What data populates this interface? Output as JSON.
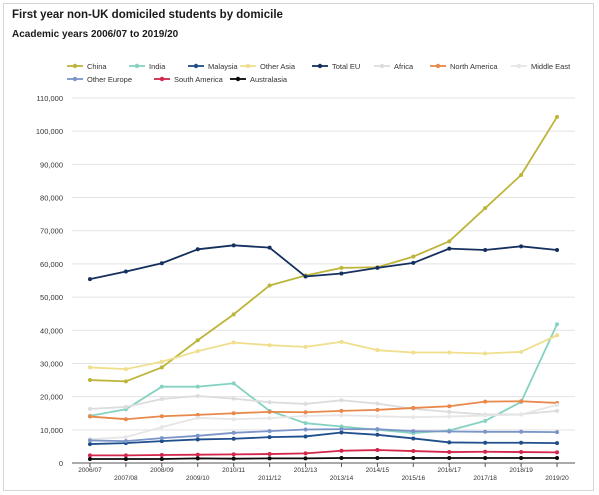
{
  "chart_data": {
    "type": "line",
    "title": "First year non-UK domiciled students by domicile",
    "subtitle": "Academic years 2006/07 to 2019/20",
    "xlabel": "",
    "ylabel": "",
    "ylim": [
      0,
      110000
    ],
    "yticks": [
      "0",
      "10,000",
      "20,000",
      "30,000",
      "40,000",
      "50,000",
      "60,000",
      "70,000",
      "80,000",
      "90,000",
      "100,000",
      "110,000"
    ],
    "grid": true,
    "legend": "top",
    "categories": [
      "2006/07",
      "2007/08",
      "2008/09",
      "2009/10",
      "2010/11",
      "2011/12",
      "2012/13",
      "2013/14",
      "2014/15",
      "2015/16",
      "2016/17",
      "2017/18",
      "2018/19",
      "2019/20"
    ],
    "series": [
      {
        "name": "China",
        "color": "#bdb53a",
        "values": [
          25000,
          24600,
          28800,
          37000,
          44800,
          53500,
          56500,
          58800,
          59000,
          62200,
          66800,
          76800,
          86800,
          104300
        ]
      },
      {
        "name": "India",
        "color": "#86d2c2",
        "values": [
          14200,
          16200,
          23000,
          23000,
          24000,
          15700,
          12000,
          11000,
          10000,
          9000,
          9800,
          12700,
          18400,
          41800
        ]
      },
      {
        "name": "Malaysia",
        "color": "#1f4e8c",
        "values": [
          5700,
          6000,
          6600,
          7100,
          7300,
          7800,
          8000,
          9200,
          8500,
          7400,
          6200,
          6100,
          6100,
          6000
        ]
      },
      {
        "name": "Other Asia",
        "color": "#efdf8d",
        "values": [
          28800,
          28300,
          30500,
          33700,
          36300,
          35500,
          35000,
          36500,
          34000,
          33300,
          33300,
          33000,
          33500,
          38500
        ]
      },
      {
        "name": "Total EU",
        "color": "#15305e",
        "values": [
          55400,
          57700,
          60200,
          64400,
          65600,
          64900,
          56200,
          57100,
          58800,
          60300,
          64600,
          64200,
          65300,
          64200
        ]
      },
      {
        "name": "Africa",
        "color": "#dcdcdc",
        "values": [
          16300,
          16900,
          19300,
          20200,
          19400,
          18300,
          17800,
          18900,
          17900,
          16300,
          15400,
          14600,
          14700,
          15700
        ]
      },
      {
        "name": "North America",
        "color": "#e8884a",
        "values": [
          14000,
          13200,
          14100,
          14500,
          15000,
          15400,
          15300,
          15700,
          16000,
          16600,
          17100,
          18500,
          18600,
          18100
        ]
      },
      {
        "name": "Middle East",
        "color": "#e6e6e6",
        "values": [
          7200,
          7800,
          10800,
          13600,
          13200,
          13500,
          14200,
          14400,
          14100,
          13800,
          14000,
          14300,
          14600,
          17500
        ]
      },
      {
        "name": "Other Europe",
        "color": "#7b95c9",
        "values": [
          6800,
          6600,
          7500,
          8200,
          9100,
          9600,
          10100,
          10200,
          10200,
          9600,
          9500,
          9400,
          9400,
          9300
        ]
      },
      {
        "name": "South America",
        "color": "#d2264a",
        "values": [
          2300,
          2300,
          2400,
          2500,
          2600,
          2700,
          2900,
          3700,
          3900,
          3600,
          3300,
          3400,
          3300,
          3200
        ]
      },
      {
        "name": "Australasia",
        "color": "#0a0a0a",
        "values": [
          1200,
          1200,
          1200,
          1400,
          1300,
          1400,
          1400,
          1500,
          1500,
          1500,
          1500,
          1500,
          1500,
          1500
        ]
      }
    ]
  }
}
